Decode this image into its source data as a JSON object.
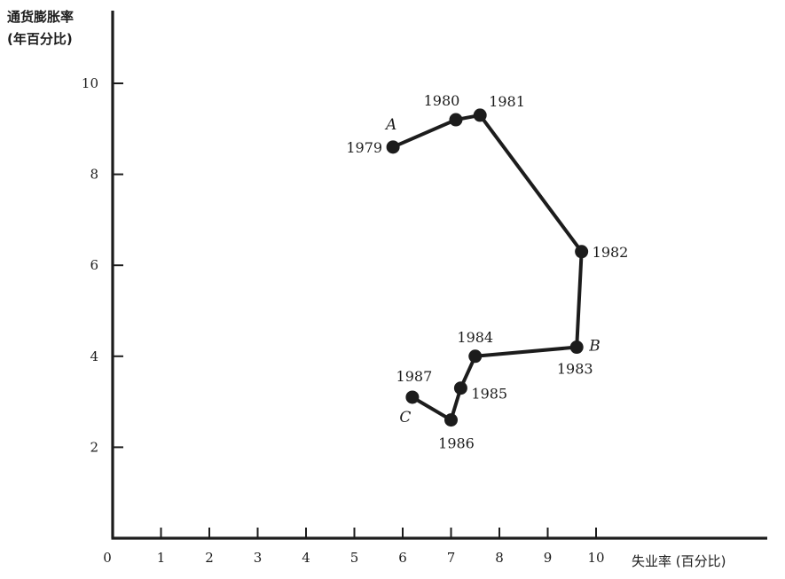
{
  "chart_data": {
    "type": "line",
    "ylabel": [
      "通货膨胀率",
      "(年百分比)"
    ],
    "xlabel": "失业率 (百分比)",
    "xlim": [
      0,
      10
    ],
    "ylim": [
      0,
      10
    ],
    "xticks": [
      0,
      1,
      2,
      3,
      4,
      5,
      6,
      7,
      8,
      9,
      10
    ],
    "yticks": [
      2,
      4,
      6,
      8,
      10
    ],
    "grid": false,
    "series": [
      {
        "points": [
          {
            "x": 5.8,
            "y": 8.6,
            "year": "1979",
            "marker": "A"
          },
          {
            "x": 7.1,
            "y": 9.2,
            "year": "1980",
            "marker": ""
          },
          {
            "x": 7.6,
            "y": 9.3,
            "year": "1981",
            "marker": ""
          },
          {
            "x": 9.7,
            "y": 6.3,
            "year": "1982",
            "marker": ""
          },
          {
            "x": 9.6,
            "y": 4.2,
            "year": "1983",
            "marker": "B"
          },
          {
            "x": 7.5,
            "y": 4.0,
            "year": "1984",
            "marker": ""
          },
          {
            "x": 7.2,
            "y": 3.3,
            "year": "1985",
            "marker": ""
          },
          {
            "x": 7.0,
            "y": 2.6,
            "year": "1986",
            "marker": ""
          },
          {
            "x": 6.2,
            "y": 3.1,
            "year": "1987",
            "marker": "C"
          }
        ]
      }
    ]
  }
}
